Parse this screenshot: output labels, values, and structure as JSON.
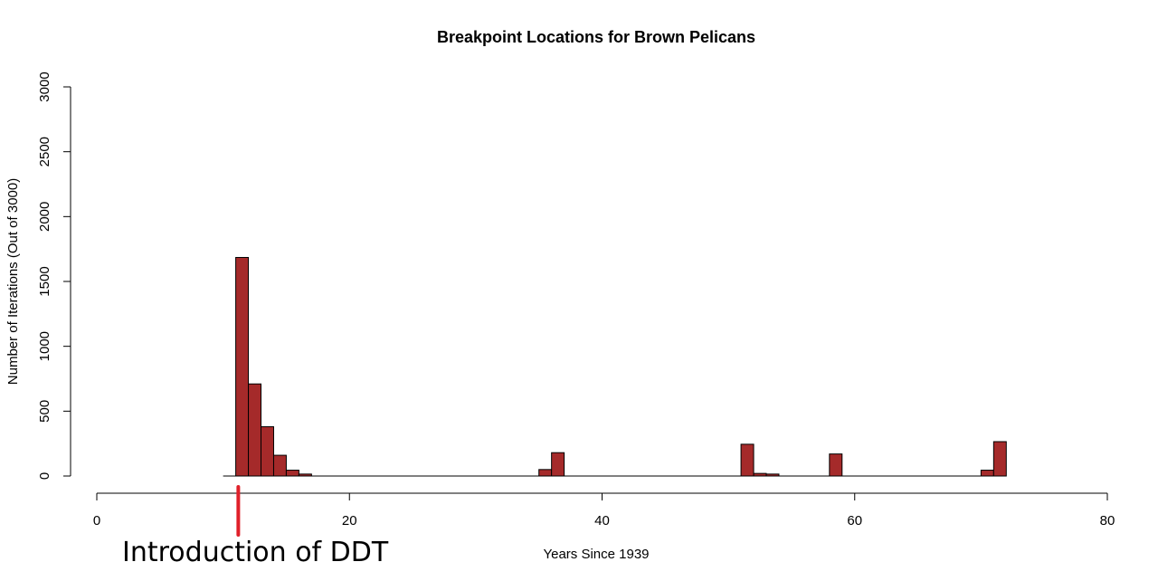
{
  "chart_data": {
    "type": "bar",
    "title": "Breakpoint Locations for Brown Pelicans",
    "xlabel": "Years Since 1939",
    "ylabel": "Number of Iterations (Out of 3000)",
    "xlim": [
      0,
      80
    ],
    "ylim": [
      0,
      3000
    ],
    "xticks": [
      0,
      20,
      40,
      60,
      80
    ],
    "yticks": [
      0,
      500,
      1000,
      1500,
      2000,
      2500,
      3000
    ],
    "bin_width": 1,
    "bins": [
      {
        "x0": 10,
        "value": 0
      },
      {
        "x0": 11,
        "value": 1685
      },
      {
        "x0": 12,
        "value": 710
      },
      {
        "x0": 13,
        "value": 380
      },
      {
        "x0": 14,
        "value": 160
      },
      {
        "x0": 15,
        "value": 45
      },
      {
        "x0": 16,
        "value": 15
      },
      {
        "x0": 35,
        "value": 50
      },
      {
        "x0": 36,
        "value": 180
      },
      {
        "x0": 51,
        "value": 245
      },
      {
        "x0": 52,
        "value": 20
      },
      {
        "x0": 53,
        "value": 15
      },
      {
        "x0": 58,
        "value": 170
      },
      {
        "x0": 70,
        "value": 45
      },
      {
        "x0": 71,
        "value": 265
      }
    ],
    "baseline_range": [
      10,
      72
    ],
    "grid": false,
    "colors": {
      "bar_fill": "#a52a2a",
      "bar_stroke": "#000000",
      "marker": "#e0202a"
    },
    "annotations": [
      {
        "text": "Introduction of DDT",
        "x": 11.2
      }
    ]
  }
}
